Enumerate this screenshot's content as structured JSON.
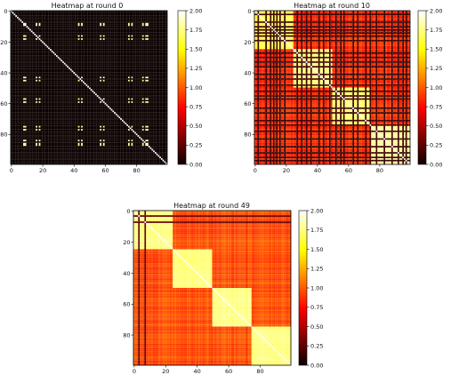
{
  "chart_data": [
    {
      "type": "heatmap",
      "title": "Heatmap at round 0",
      "size": 100,
      "xticks": [
        0,
        20,
        40,
        60,
        80
      ],
      "yticks": [
        0,
        20,
        40,
        60,
        80
      ],
      "colorbar_ticks": [
        "0.00",
        "0.25",
        "0.50",
        "0.75",
        "1.00",
        "1.25",
        "1.50",
        "1.75",
        "2.00"
      ],
      "vmin": 0,
      "vmax": 2,
      "colormap": "hot",
      "highlight_indices": [
        8,
        9,
        16,
        18,
        43,
        45,
        57,
        59,
        75,
        77,
        84,
        86,
        87
      ],
      "diagonal_value": 2.0,
      "background_value": 0.0,
      "description_values": {
        "off_block_cross": 1.8
      }
    },
    {
      "type": "heatmap",
      "title": "Heatmap at round 10",
      "size": 100,
      "xticks": [
        0,
        20,
        40,
        60,
        80
      ],
      "yticks": [
        0,
        20,
        40,
        60,
        80
      ],
      "colorbar_ticks": [
        "0.00",
        "0.25",
        "0.50",
        "0.75",
        "1.00",
        "1.25",
        "1.50",
        "1.75",
        "2.00"
      ],
      "vmin": 0,
      "vmax": 2,
      "colormap": "hot",
      "clusters": [
        [
          0,
          25
        ],
        [
          25,
          50
        ],
        [
          50,
          75
        ],
        [
          75,
          100
        ]
      ],
      "cluster_values": [
        1.65,
        1.75,
        1.7,
        1.8
      ],
      "between_value": 0.85,
      "dark_indices": [
        2,
        7,
        10,
        12,
        14,
        16,
        19,
        27,
        30,
        33,
        36,
        41,
        44,
        48,
        52,
        55,
        57,
        63,
        66,
        71,
        74,
        78,
        83,
        88,
        92,
        95,
        97
      ]
    },
    {
      "type": "heatmap",
      "title": "Heatmap at round 49",
      "size": 100,
      "xticks": [
        0,
        20,
        40,
        60,
        80
      ],
      "yticks": [
        0,
        20,
        40,
        60,
        80
      ],
      "colorbar_ticks": [
        "0.00",
        "0.25",
        "0.50",
        "0.75",
        "1.00",
        "1.25",
        "1.50",
        "1.75",
        "2.00"
      ],
      "vmin": 0,
      "vmax": 2,
      "colormap": "hot",
      "clusters": [
        [
          0,
          25
        ],
        [
          25,
          50
        ],
        [
          50,
          75
        ],
        [
          75,
          100
        ]
      ],
      "cluster_values": [
        1.75,
        1.75,
        1.75,
        1.75
      ],
      "between_value": 0.95,
      "dark_indices": [
        3,
        7
      ]
    }
  ],
  "colors": {
    "black": "#000000",
    "white": "#ffffff"
  }
}
